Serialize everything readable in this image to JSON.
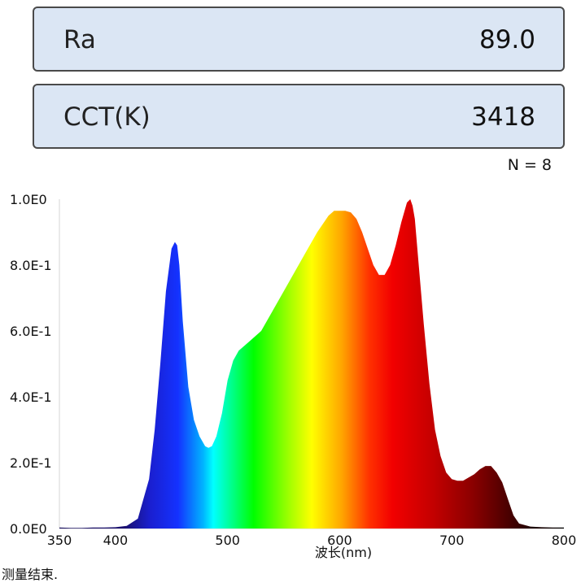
{
  "cards": [
    {
      "label": "Ra",
      "value": "89.0"
    },
    {
      "label": "CCT(K)",
      "value": "3418"
    }
  ],
  "count_label": "N = 8",
  "status": "测量结束.",
  "chart_data": {
    "type": "area",
    "xlabel": "波长(nm)",
    "ylabel": "",
    "xlim": [
      350,
      800
    ],
    "ylim": [
      0,
      1.0
    ],
    "x_ticks": [
      350,
      400,
      500,
      600,
      700,
      800
    ],
    "x_tick_labels": [
      "350",
      "400",
      "500",
      "600",
      "700",
      "800"
    ],
    "y_ticks": [
      0,
      0.2,
      0.4,
      0.6,
      0.8,
      1.0
    ],
    "y_tick_labels": [
      "0.0E0",
      "2.0E-1",
      "4.0E-1",
      "6.0E-1",
      "8.0E-1",
      "1.0E0"
    ],
    "grid": false,
    "fill": "visible-spectrum-gradient",
    "series": [
      {
        "x": [
          350,
          360,
          370,
          380,
          390,
          400,
          410,
          420,
          430,
          435,
          440,
          445,
          450,
          453,
          455,
          457,
          460,
          465,
          470,
          475,
          480,
          483,
          486,
          490,
          495,
          500,
          505,
          510,
          520,
          530,
          540,
          550,
          560,
          570,
          580,
          590,
          595,
          600,
          605,
          610,
          615,
          620,
          625,
          630,
          635,
          640,
          645,
          650,
          655,
          660,
          663,
          665,
          667,
          670,
          675,
          680,
          685,
          690,
          695,
          700,
          705,
          710,
          715,
          720,
          725,
          730,
          735,
          740,
          745,
          750,
          755,
          760,
          770,
          780,
          790,
          800
        ],
        "y": [
          0.003,
          0.002,
          0.002,
          0.003,
          0.003,
          0.004,
          0.008,
          0.03,
          0.15,
          0.3,
          0.5,
          0.72,
          0.85,
          0.87,
          0.86,
          0.8,
          0.63,
          0.43,
          0.33,
          0.28,
          0.25,
          0.245,
          0.25,
          0.28,
          0.35,
          0.45,
          0.51,
          0.54,
          0.57,
          0.6,
          0.66,
          0.72,
          0.78,
          0.84,
          0.9,
          0.95,
          0.965,
          0.965,
          0.965,
          0.96,
          0.94,
          0.9,
          0.85,
          0.8,
          0.77,
          0.77,
          0.8,
          0.86,
          0.93,
          0.99,
          1.0,
          0.98,
          0.94,
          0.82,
          0.62,
          0.44,
          0.3,
          0.22,
          0.17,
          0.15,
          0.145,
          0.145,
          0.155,
          0.165,
          0.18,
          0.19,
          0.19,
          0.17,
          0.14,
          0.09,
          0.04,
          0.015,
          0.006,
          0.004,
          0.003,
          0.003
        ]
      }
    ]
  }
}
